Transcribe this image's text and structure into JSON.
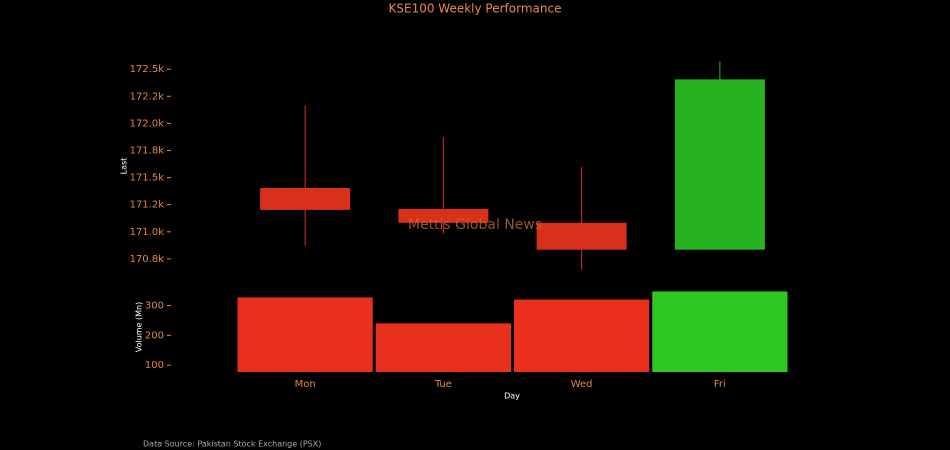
{
  "chart_data": {
    "type": "candlestick",
    "title": "KSE100 Weekly Performance",
    "categories": [
      "Mon",
      "Tue",
      "Wed",
      "Fri"
    ],
    "open": [
      171404,
      171211,
      171083,
      170835
    ],
    "high": [
      172167,
      171873,
      171597,
      172572
    ],
    "low": [
      170871,
      170982,
      170651,
      170835
    ],
    "close": [
      171202,
      171083,
      170835,
      172406
    ],
    "up_color": "#27b21f",
    "down_color": "#d8311b",
    "ylabel": "Last",
    "ylim": [
      170620,
      172640
    ],
    "yticks": [
      {
        "value": 170750,
        "label": "170.8k"
      },
      {
        "value": 171000,
        "label": "171.0k"
      },
      {
        "value": 171250,
        "label": "171.2k"
      },
      {
        "value": 171500,
        "label": "171.5k"
      },
      {
        "value": 171750,
        "label": "171.8k"
      },
      {
        "value": 172000,
        "label": "172.0k"
      },
      {
        "value": 172250,
        "label": "172.2k"
      },
      {
        "value": 172500,
        "label": "172.5k"
      }
    ],
    "xlabel": "Day",
    "watermark": "Mettis Global News",
    "source": "Data Source: Pakistan Stock Exchange (PSX)",
    "volume": {
      "type": "bar",
      "ylabel": "Volume (Mn)",
      "values": [
        327,
        240,
        320,
        347
      ],
      "up_color": "#2fc822",
      "down_color": "#e8301c",
      "ylim": [
        77,
        352
      ],
      "yticks": [
        100,
        200,
        300
      ]
    }
  }
}
